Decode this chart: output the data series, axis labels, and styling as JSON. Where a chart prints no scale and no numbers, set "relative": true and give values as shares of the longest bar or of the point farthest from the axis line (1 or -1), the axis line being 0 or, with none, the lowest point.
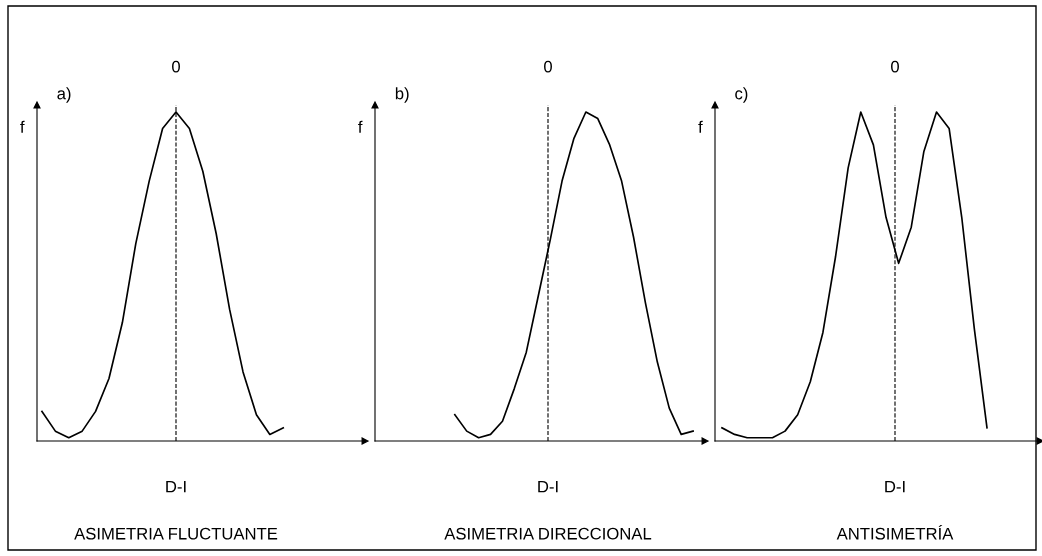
{
  "chart_data": [
    {
      "type": "line",
      "relative": true,
      "ylabel": "f",
      "xlabel": "D-I",
      "title": "ASIMETRIA FLUCTUANTE",
      "annotations": [
        "a)",
        "0"
      ],
      "categories": [
        null,
        null,
        null,
        null,
        null,
        null,
        null,
        null,
        null,
        null,
        null,
        null,
        null,
        null,
        null,
        null,
        null,
        null,
        null
      ],
      "series": [
        {
          "color": "#000000",
          "values": [
            0.09,
            0.03,
            0.01,
            0.03,
            0.09,
            0.19,
            0.36,
            0.6,
            0.79,
            0.95,
            1,
            0.95,
            0.82,
            0.63,
            0.4,
            0.21,
            0.08,
            0.02,
            0.04
          ]
        }
      ]
    },
    {
      "type": "line",
      "relative": true,
      "ylabel": "f",
      "xlabel": "D-I",
      "title": "ASIMETRIA DIRECCIONAL",
      "annotations": [
        "b)",
        "0"
      ],
      "categories": [
        null,
        null,
        null,
        null,
        null,
        null,
        null,
        null,
        null,
        null,
        null,
        null,
        null,
        null,
        null,
        null,
        null,
        null,
        null,
        null,
        null
      ],
      "series": [
        {
          "color": "#000000",
          "values": [
            0.08,
            0.03,
            0.01,
            0.02,
            0.06,
            0.16,
            0.27,
            0.44,
            0.61,
            0.79,
            0.92,
            1,
            0.98,
            0.9,
            0.79,
            0.62,
            0.42,
            0.24,
            0.1,
            0.02,
            0.03
          ]
        }
      ]
    },
    {
      "type": "line",
      "relative": true,
      "ylabel": "f",
      "xlabel": "D-I",
      "title": "ANTISIMETRÍA",
      "annotations": [
        "c)",
        "0"
      ],
      "categories": [
        null,
        null,
        null,
        null,
        null,
        null,
        null,
        null,
        null,
        null,
        null,
        null,
        null,
        null,
        null,
        null,
        null,
        null,
        null,
        null,
        null,
        null
      ],
      "series": [
        {
          "color": "#000000",
          "values": [
            0.04,
            0.02,
            0.01,
            0.01,
            0.01,
            0.03,
            0.08,
            0.18,
            0.33,
            0.56,
            0.83,
            1,
            0.9,
            0.68,
            0.54,
            0.65,
            0.88,
            1,
            0.95,
            0.68,
            0.34,
            0.04
          ]
        }
      ]
    }
  ]
}
